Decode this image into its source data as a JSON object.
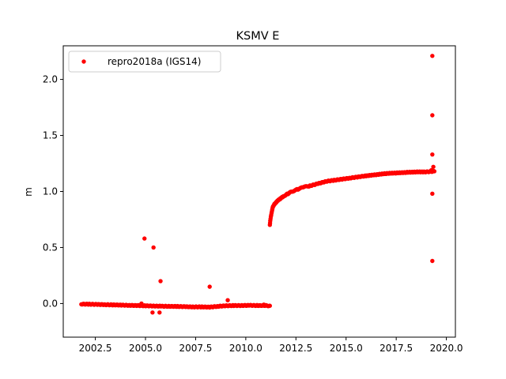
{
  "chart_data": {
    "type": "scatter",
    "title": "KSMV E",
    "xlabel": "",
    "ylabel": "m",
    "xlim": [
      2000.9,
      2020.45
    ],
    "ylim": [
      -0.3,
      2.3
    ],
    "xticks": [
      2002.5,
      2005.0,
      2007.5,
      2010.0,
      2012.5,
      2015.0,
      2017.5,
      2020.0
    ],
    "xtick_labels": [
      "2002.5",
      "2005.0",
      "2007.5",
      "2010.0",
      "2012.5",
      "2015.0",
      "2017.5",
      "2020.0"
    ],
    "yticks": [
      0.0,
      0.5,
      1.0,
      1.5,
      2.0
    ],
    "ytick_labels": [
      "0.0",
      "0.5",
      "1.0",
      "1.5",
      "2.0"
    ],
    "grid": false,
    "legend_position": "upper-left",
    "series": [
      {
        "name": "repro2018a (IGS14)",
        "color": "#ff0000",
        "marker": "circle",
        "segments": [
          {
            "x": [
              2001.8,
              2002.2,
              2002.6,
              2003.0,
              2003.4,
              2003.8,
              2004.2,
              2004.6,
              2005.0,
              2005.4,
              2005.8,
              2006.2,
              2006.6,
              2007.0,
              2007.4,
              2007.8,
              2008.2,
              2008.6,
              2009.0,
              2009.4,
              2009.8,
              2010.2,
              2010.6,
              2011.0,
              2011.2
            ],
            "y": [
              -0.005,
              -0.006,
              -0.008,
              -0.01,
              -0.012,
              -0.014,
              -0.016,
              -0.018,
              -0.02,
              -0.022,
              -0.024,
              -0.025,
              -0.026,
              -0.028,
              -0.03,
              -0.03,
              -0.032,
              -0.025,
              -0.02,
              -0.018,
              -0.018,
              -0.016,
              -0.018,
              -0.018,
              -0.02
            ]
          },
          {
            "x": [
              2011.2,
              2011.22,
              2011.25,
              2011.3,
              2011.35,
              2011.4,
              2011.5,
              2011.6,
              2011.75,
              2011.9,
              2012.1,
              2012.3,
              2012.6,
              2012.9,
              2013.2,
              2013.6,
              2014.0,
              2014.4,
              2014.8,
              2015.2,
              2015.6,
              2016.0,
              2016.5,
              2017.0,
              2017.5,
              2018.0,
              2018.5,
              2019.0,
              2019.4
            ],
            "y": [
              0.7,
              0.74,
              0.78,
              0.82,
              0.86,
              0.88,
              0.9,
              0.92,
              0.94,
              0.96,
              0.98,
              1.0,
              1.02,
              1.04,
              1.05,
              1.07,
              1.09,
              1.1,
              1.11,
              1.12,
              1.13,
              1.14,
              1.15,
              1.16,
              1.165,
              1.17,
              1.175,
              1.175,
              1.18
            ]
          }
        ],
        "outliers": {
          "x": [
            2004.95,
            2005.4,
            2005.75,
            2008.2,
            2009.1,
            2005.35,
            2005.7,
            2004.8,
            2010.9,
            2019.3,
            2019.3,
            2019.3,
            2019.3,
            2019.3,
            2019.35,
            2019.25
          ],
          "y": [
            0.58,
            0.5,
            0.2,
            0.15,
            0.03,
            -0.08,
            -0.08,
            0.0,
            -0.01,
            2.21,
            1.68,
            1.33,
            0.98,
            0.38,
            1.22,
            1.19
          ]
        }
      }
    ]
  }
}
